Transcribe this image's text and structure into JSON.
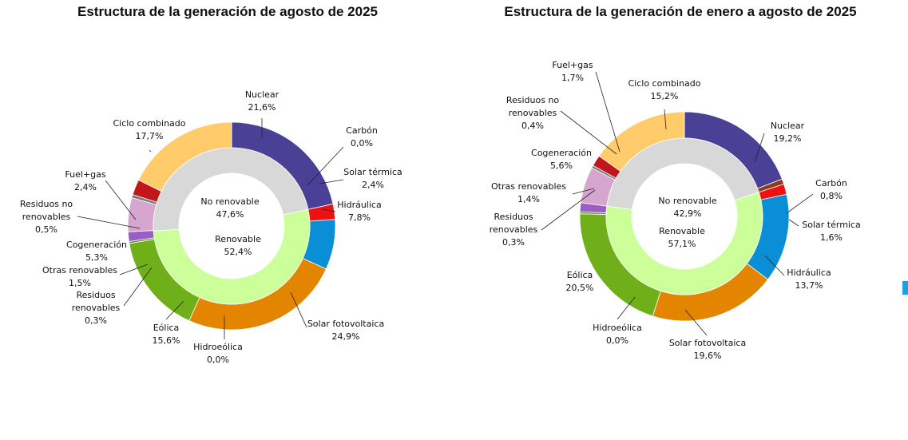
{
  "colors": {
    "Nuclear": "#4a4096",
    "Carbón": "#8b3a1f",
    "Solar térmica": "#ee1111",
    "Hidráulica": "#0a8fd6",
    "Solar fotovoltaica": "#e48500",
    "Hidroeólica": "#2f7fbf",
    "Eólica": "#6fb01a",
    "Residuos renovables": "#5b8a2c",
    "Otras renovables": "#9a5fc4",
    "Cogeneración": "#d6a6d0",
    "Residuos no renovables": "#7a7a7a",
    "Fuel+gas": "#c0161c",
    "Ciclo combinado": "#ffcb6b",
    "No renovable": "#d8d8d8",
    "Renovable": "#ccff99",
    "accent-bar": "#19a3e6"
  },
  "chart_data": [
    {
      "type": "pie",
      "title": "Estructura de la generación de agosto de 2025",
      "outer": [
        {
          "name": "Nuclear",
          "display": [
            "Nuclear"
          ],
          "value": 21.6,
          "label": "21,6%"
        },
        {
          "name": "Carbón",
          "display": [
            "Carbón"
          ],
          "value": 0.0,
          "label": "0,0%"
        },
        {
          "name": "Solar térmica",
          "display": [
            "Solar térmica"
          ],
          "value": 2.4,
          "label": "2,4%"
        },
        {
          "name": "Hidráulica",
          "display": [
            "Hidráulica"
          ],
          "value": 7.8,
          "label": "7,8%"
        },
        {
          "name": "Solar fotovoltaica",
          "display": [
            "Solar fotovoltaica"
          ],
          "value": 24.9,
          "label": "24,9%"
        },
        {
          "name": "Hidroeólica",
          "display": [
            "Hidroeólica"
          ],
          "value": 0.0,
          "label": "0,0%"
        },
        {
          "name": "Eólica",
          "display": [
            "Eólica"
          ],
          "value": 15.6,
          "label": "15,6%"
        },
        {
          "name": "Residuos renovables",
          "display": [
            "Residuos",
            "renovables"
          ],
          "value": 0.3,
          "label": "0,3%"
        },
        {
          "name": "Otras renovables",
          "display": [
            "Otras renovables"
          ],
          "value": 1.5,
          "label": "1,5%"
        },
        {
          "name": "Cogeneración",
          "display": [
            "Cogeneración"
          ],
          "value": 5.3,
          "label": "5,3%"
        },
        {
          "name": "Residuos no renovables",
          "display": [
            "Residuos no",
            "renovables"
          ],
          "value": 0.5,
          "label": "0,5%"
        },
        {
          "name": "Fuel+gas",
          "display": [
            "Fuel+gas"
          ],
          "value": 2.4,
          "label": "2,4%"
        },
        {
          "name": "Ciclo combinado",
          "display": [
            "Ciclo combinado"
          ],
          "value": 17.7,
          "label": "17,7%"
        }
      ],
      "inner": [
        {
          "name": "Renovable",
          "display": [
            "Renovable"
          ],
          "value": 52.4,
          "label": "52,4%"
        },
        {
          "name": "No renovable",
          "display": [
            "No renovable"
          ],
          "value": 47.6,
          "label": "47,6%"
        }
      ]
    },
    {
      "type": "pie",
      "title": "Estructura de la generación de enero a agosto de 2025",
      "outer": [
        {
          "name": "Nuclear",
          "display": [
            "Nuclear"
          ],
          "value": 19.2,
          "label": "19,2%"
        },
        {
          "name": "Carbón",
          "display": [
            "Carbón"
          ],
          "value": 0.8,
          "label": "0,8%"
        },
        {
          "name": "Solar térmica",
          "display": [
            "Solar térmica"
          ],
          "value": 1.6,
          "label": "1,6%"
        },
        {
          "name": "Hidráulica",
          "display": [
            "Hidráulica"
          ],
          "value": 13.7,
          "label": "13,7%"
        },
        {
          "name": "Solar fotovoltaica",
          "display": [
            "Solar fotovoltaica"
          ],
          "value": 19.6,
          "label": "19,6%"
        },
        {
          "name": "Hidroeólica",
          "display": [
            "Hidroeólica"
          ],
          "value": 0.0,
          "label": "0,0%"
        },
        {
          "name": "Eólica",
          "display": [
            "Eólica"
          ],
          "value": 20.5,
          "label": "20,5%"
        },
        {
          "name": "Residuos renovables",
          "display": [
            "Residuos",
            "renovables"
          ],
          "value": 0.3,
          "label": "0,3%"
        },
        {
          "name": "Otras renovables",
          "display": [
            "Otras renovables"
          ],
          "value": 1.4,
          "label": "1,4%"
        },
        {
          "name": "Cogeneración",
          "display": [
            "Cogeneración"
          ],
          "value": 5.6,
          "label": "5,6%"
        },
        {
          "name": "Residuos no renovables",
          "display": [
            "Residuos no",
            "renovables"
          ],
          "value": 0.4,
          "label": "0,4%"
        },
        {
          "name": "Fuel+gas",
          "display": [
            "Fuel+gas"
          ],
          "value": 1.7,
          "label": "1,7%"
        },
        {
          "name": "Ciclo combinado",
          "display": [
            "Ciclo combinado"
          ],
          "value": 15.2,
          "label": "15,2%"
        }
      ],
      "inner": [
        {
          "name": "Renovable",
          "display": [
            "Renovable"
          ],
          "value": 57.1,
          "label": "57,1%"
        },
        {
          "name": "No renovable",
          "display": [
            "No renovable"
          ],
          "value": 42.9,
          "label": "42,9%"
        }
      ]
    }
  ]
}
